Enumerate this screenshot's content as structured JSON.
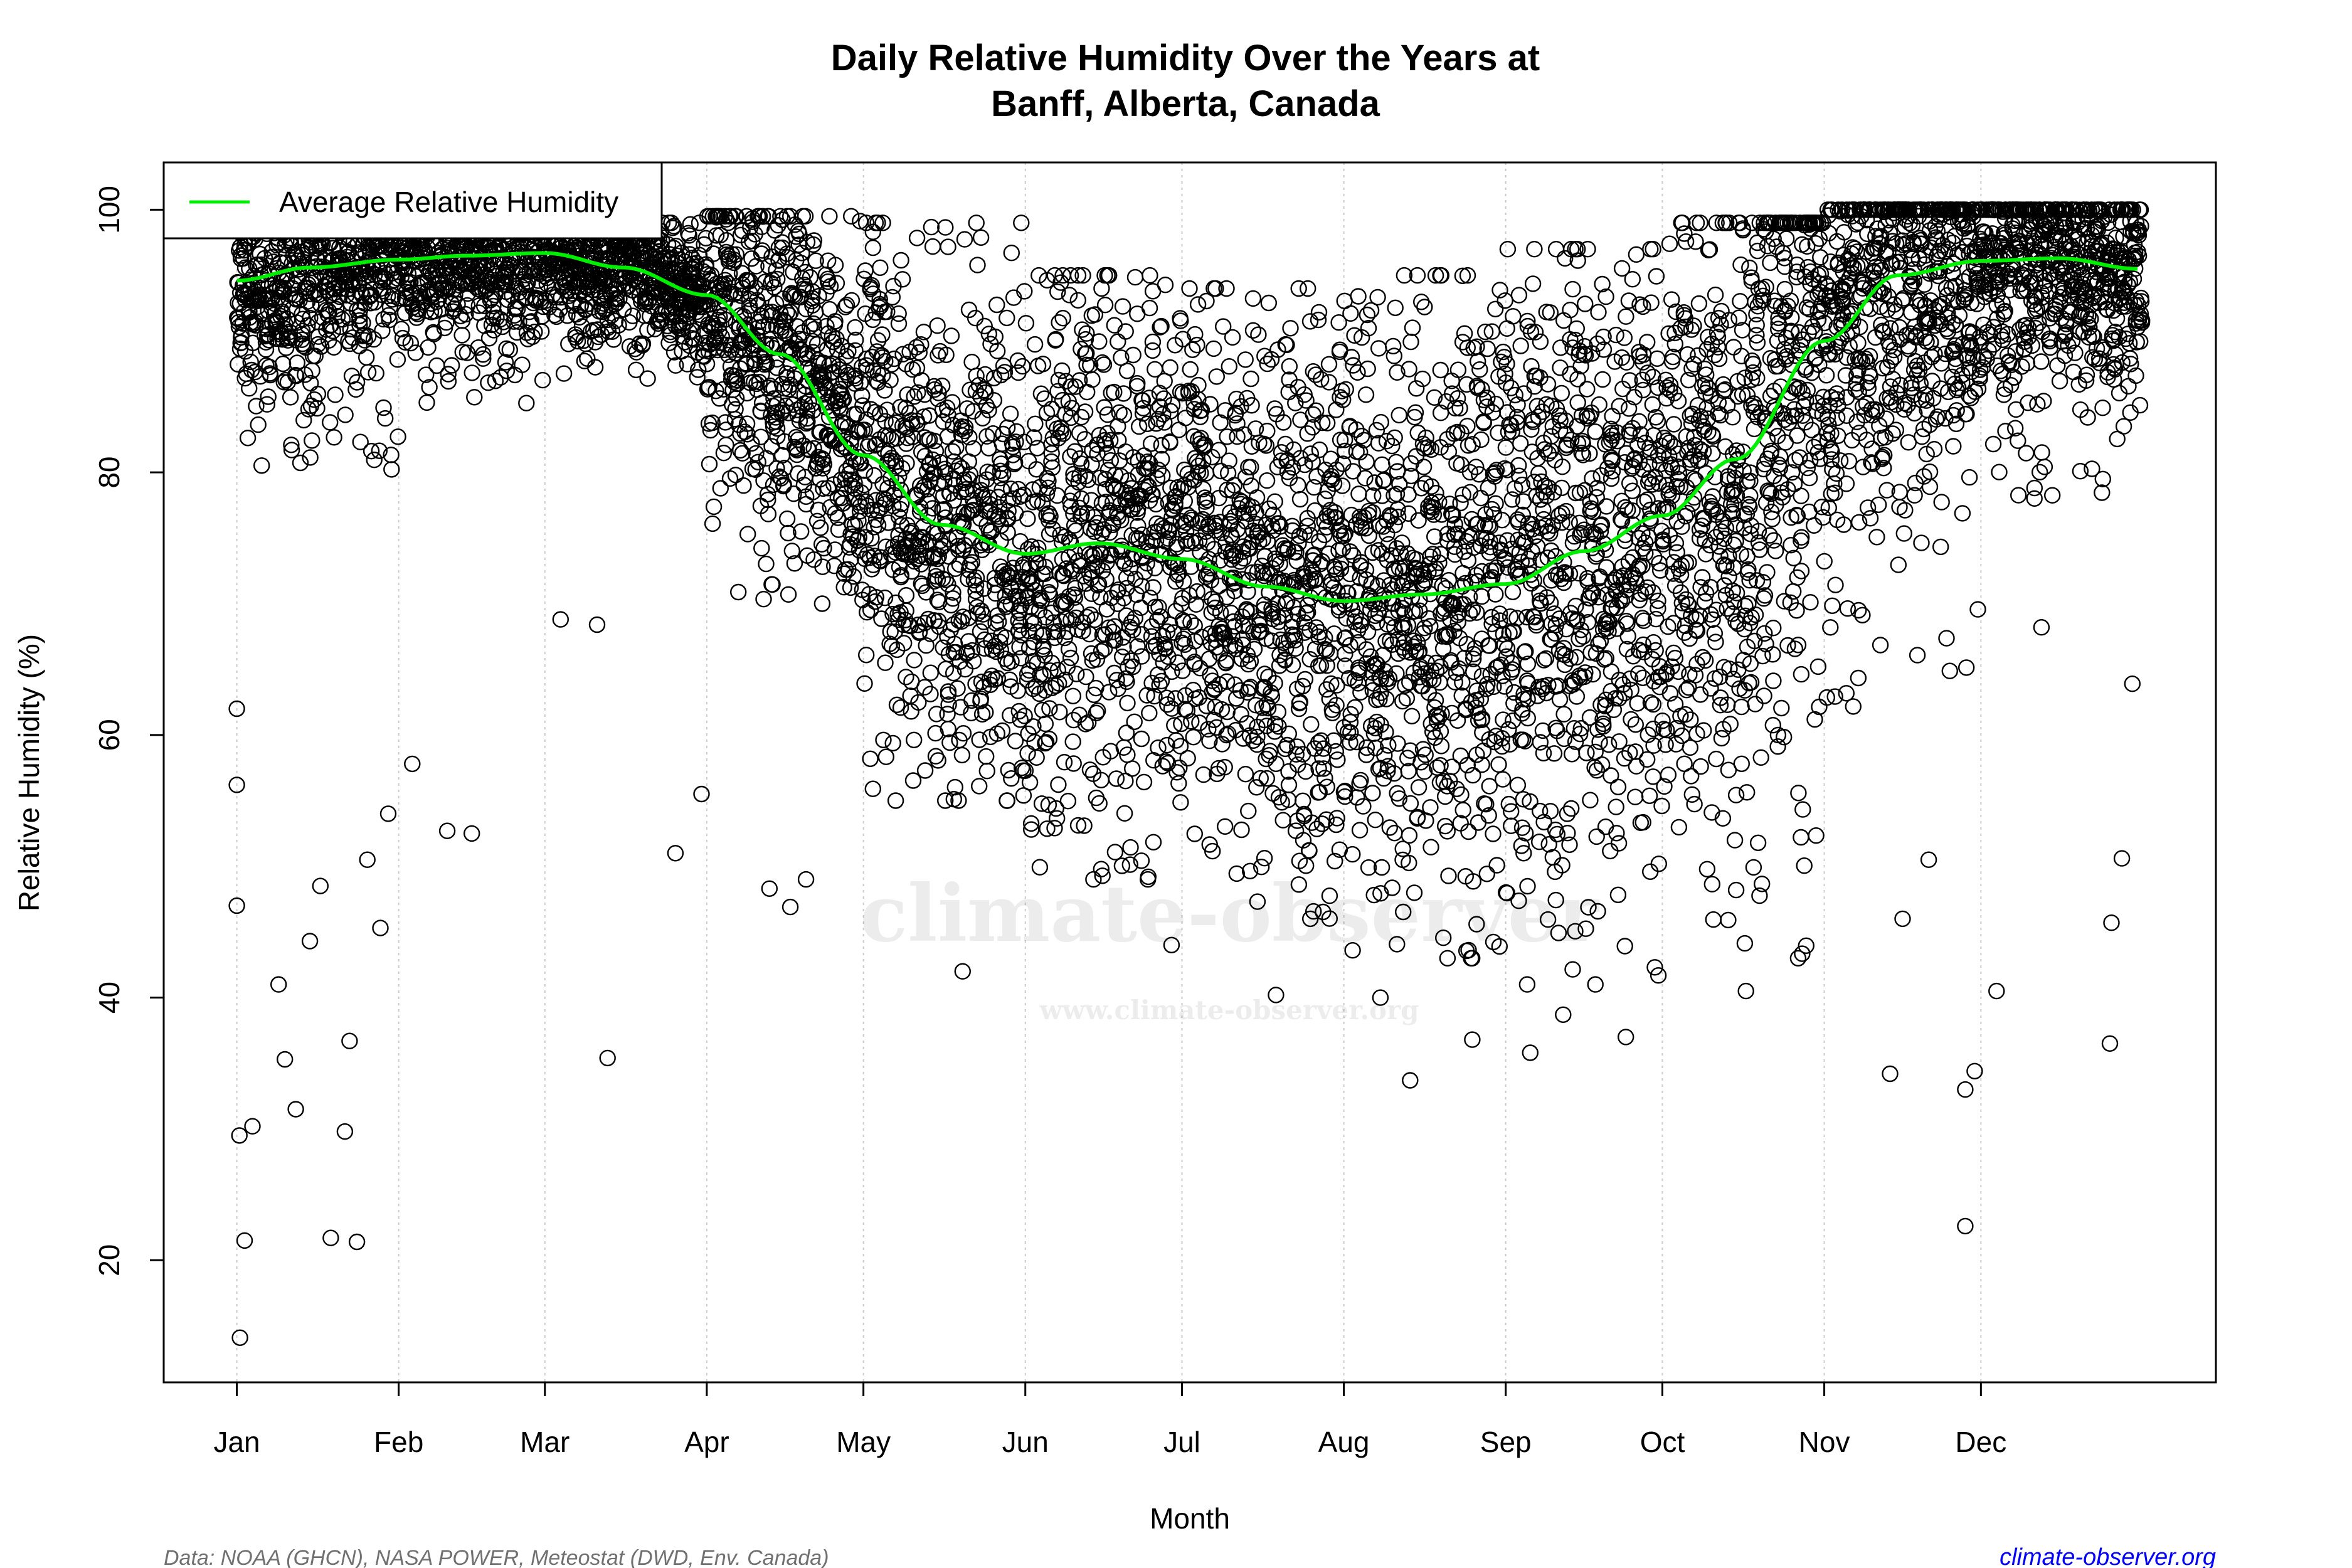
{
  "chart_data": {
    "type": "scatter",
    "title": [
      "Daily Relative Humidity Over the Years at",
      "Banff, Alberta, Canada"
    ],
    "xlabel": "Month",
    "ylabel": "Relative Humidity  (%)",
    "xlim": [
      -13,
      380
    ],
    "ylim": [
      10.7,
      103.6
    ],
    "x_ticks": [
      {
        "label": "Jan",
        "day": 1
      },
      {
        "label": "Feb",
        "day": 32
      },
      {
        "label": "Mar",
        "day": 60
      },
      {
        "label": "Apr",
        "day": 91
      },
      {
        "label": "May",
        "day": 121
      },
      {
        "label": "Jun",
        "day": 152
      },
      {
        "label": "Jul",
        "day": 182
      },
      {
        "label": "Aug",
        "day": 213
      },
      {
        "label": "Sep",
        "day": 244
      },
      {
        "label": "Oct",
        "day": 274
      },
      {
        "label": "Nov",
        "day": 305
      },
      {
        "label": "Dec",
        "day": 335
      }
    ],
    "y_ticks": [
      "20",
      "40",
      "60",
      "80",
      "100"
    ],
    "grid": "vertical dotted at month starts",
    "legend": {
      "position": "top-left",
      "entries": [
        {
          "name": "Average Relative Humidity",
          "color": "#00ee00"
        }
      ]
    },
    "point_style": {
      "shape": "open-circle",
      "color": "#000000"
    },
    "average_curve": {
      "name": "Average Relative Humidity",
      "day": [
        1,
        15,
        32,
        45,
        60,
        75,
        91,
        105,
        121,
        136,
        152,
        166,
        182,
        198,
        213,
        228,
        244,
        259,
        274,
        288,
        305,
        319,
        335,
        350,
        365
      ],
      "value": [
        94.6,
        95.6,
        96.2,
        96.5,
        96.7,
        95.6,
        93.5,
        89.0,
        81.3,
        76.0,
        73.8,
        74.6,
        73.4,
        71.3,
        70.2,
        70.7,
        71.5,
        74.0,
        76.7,
        81.0,
        90.0,
        95.0,
        96.1,
        96.3,
        95.5
      ]
    },
    "daily_spread_by_month": [
      {
        "month": "Jan",
        "low": 80,
        "high": 100
      },
      {
        "month": "Feb",
        "low": 85,
        "high": 100
      },
      {
        "month": "Mar",
        "low": 87,
        "high": 99
      },
      {
        "month": "Apr",
        "low": 70,
        "high": 99.5
      },
      {
        "month": "May",
        "low": 55,
        "high": 99
      },
      {
        "month": "Jun",
        "low": 49,
        "high": 95
      },
      {
        "month": "Jul",
        "low": 46,
        "high": 94
      },
      {
        "month": "Aug",
        "low": 43,
        "high": 95
      },
      {
        "month": "Sep",
        "low": 41,
        "high": 97
      },
      {
        "month": "Oct",
        "low": 43,
        "high": 99
      },
      {
        "month": "Nov",
        "low": 62,
        "high": 100
      },
      {
        "month": "Dec",
        "low": 78,
        "high": 100
      }
    ],
    "outlier_points": [
      [
        1.6,
        14.1
      ],
      [
        2.5,
        21.5
      ],
      [
        1.5,
        29.5
      ],
      [
        4,
        30.2
      ],
      [
        1,
        47
      ],
      [
        1,
        56.2
      ],
      [
        1,
        62
      ],
      [
        19,
        21.7
      ],
      [
        24,
        21.4
      ],
      [
        21.7,
        29.8
      ],
      [
        22.6,
        36.7
      ],
      [
        12.3,
        31.5
      ],
      [
        10.2,
        35.3
      ],
      [
        9,
        41
      ],
      [
        72,
        35.4
      ],
      [
        28.5,
        45.3
      ],
      [
        41.3,
        52.7
      ],
      [
        34.6,
        57.8
      ],
      [
        107,
        46.9
      ],
      [
        103,
        48.3
      ],
      [
        140,
        42
      ],
      [
        225.7,
        33.7
      ],
      [
        237.6,
        36.8
      ],
      [
        248.7,
        35.8
      ],
      [
        267,
        37
      ],
      [
        332,
        22.6
      ],
      [
        332,
        33
      ],
      [
        333.8,
        34.4
      ],
      [
        317.6,
        34.2
      ],
      [
        359.7,
        36.5
      ],
      [
        346.6,
        68.2
      ],
      [
        15,
        44.3
      ],
      [
        17,
        48.5
      ],
      [
        26,
        50.5
      ],
      [
        30,
        54
      ],
      [
        46,
        52.5
      ],
      [
        63,
        68.8
      ],
      [
        70,
        68.4
      ],
      [
        85,
        51
      ],
      [
        90,
        55.5
      ],
      [
        110,
        49
      ],
      [
        180,
        44
      ],
      [
        200,
        40.2
      ],
      [
        220,
        40
      ],
      [
        255,
        38.7
      ],
      [
        290,
        40.5
      ],
      [
        300,
        43
      ],
      [
        320,
        46
      ],
      [
        325,
        50.5
      ],
      [
        338,
        40.5
      ],
      [
        360,
        45.7
      ],
      [
        362,
        50.6
      ],
      [
        364,
        63.9
      ]
    ]
  },
  "watermark": {
    "main": "climate-observer",
    "url": "www.climate-observer.org"
  },
  "footer": {
    "source": "Data: NOAA (GHCN), NASA POWER, Meteostat (DWD, Env. Canada)",
    "site": "climate-observer.org"
  }
}
